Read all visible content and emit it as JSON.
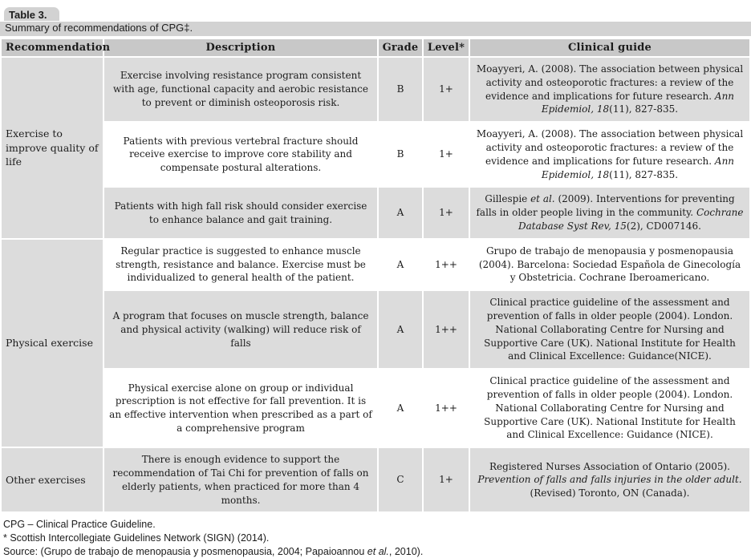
{
  "title": {
    "label": "Table 3.",
    "caption": "Summary of recommendations of CPG‡."
  },
  "table": {
    "headers": [
      "Recommendation",
      "Description",
      "Grade",
      "Level*",
      "Clinical guide"
    ],
    "groups": [
      {
        "recommendation": "Exercise to improve quality of life",
        "rows": [
          {
            "description": "Exercise involving resistance program consistent with age, functional capacity and aerobic resistance to prevent or diminish osteoporosis risk.",
            "grade": "B",
            "level": "1+",
            "guide": [
              {
                "t": "Moayyeri, A. (2008). The association between physical activity and osteoporotic fractures: a review of the evidence and implications for future research. "
              },
              {
                "t": "Ann Epidemiol, 18",
                "i": true
              },
              {
                "t": "(11), 827-835."
              }
            ]
          },
          {
            "description": "Patients with previous vertebral fracture should receive exercise to improve core stability and compensate postural alterations.",
            "grade": "B",
            "level": "1+",
            "guide": [
              {
                "t": "Moayyeri, A. (2008). The association between physical activity and osteoporotic fractures: a review of the evidence and implications for future research. "
              },
              {
                "t": "Ann Epidemiol, 18",
                "i": true
              },
              {
                "t": "(11), 827-835."
              }
            ]
          },
          {
            "description": "Patients with high fall risk should consider exercise to enhance balance and gait training.",
            "grade": "A",
            "level": "1+",
            "guide": [
              {
                "t": "Gillespie "
              },
              {
                "t": "et al.",
                "i": true
              },
              {
                "t": " (2009). Interventions for preventing falls in older people living in the community. "
              },
              {
                "t": "Cochrane Database Syst Rev, 15",
                "i": true
              },
              {
                "t": "(2), CD007146."
              }
            ]
          }
        ]
      },
      {
        "recommendation": "Physical exercise",
        "rows": [
          {
            "description": "Regular practice is suggested to enhance muscle strength, resistance and balance. Exercise must be individualized to general health of the patient.",
            "grade": "A",
            "level": "1++",
            "guide": [
              {
                "t": "Grupo de trabajo de menopausia y posmenopausia (2004). Barcelona: Sociedad Española de Ginecología y Obstetricia. Cochrane Iberoamericano."
              }
            ]
          },
          {
            "description": "A program that focuses on muscle strength, balance and physical activity (walking) will reduce risk of falls",
            "grade": "A",
            "level": "1++",
            "guide": [
              {
                "t": "Clinical practice guideline of the assessment and prevention of falls in older people (2004). London. National Collaborating Centre for Nursing and Supportive Care (UK). National Institute for Health and Clinical Excellence: Guidance(NICE)."
              }
            ]
          },
          {
            "description": "Physical exercise alone on group or individual prescription is not effective for fall prevention. It is an effective intervention when prescribed as a part of a comprehensive program",
            "grade": "A",
            "level": "1++",
            "guide": [
              {
                "t": "Clinical practice guideline of the assessment and prevention of falls in older people (2004). London. National Collaborating Centre for Nursing and Supportive Care (UK). National Institute for Health and Clinical Excellence: Guidance (NICE)."
              }
            ]
          }
        ]
      },
      {
        "recommendation": "Other exercises",
        "rows": [
          {
            "description": "There is enough evidence to support the recommendation of Tai Chi for prevention of falls on elderly patients, when practiced for more than 4 months.",
            "grade": "C",
            "level": "1+",
            "guide": [
              {
                "t": "Registered Nurses Association of Ontario (2005). "
              },
              {
                "t": "Prevention of falls and falls injuries in the older adult.",
                "i": true
              },
              {
                "t": " (Revised) Toronto, ON (Canada)."
              }
            ]
          }
        ]
      }
    ]
  },
  "footnotes": {
    "line1": "CPG – Clinical Practice Guideline.",
    "line2": "* Scottish Intercollegiate Guidelines Network (SIGN) (2014).",
    "line3": [
      {
        "t": "Source: (Grupo de trabajo de menopausia y posmenopausia, 2004; Papaioannou "
      },
      {
        "t": "et al.",
        "i": true
      },
      {
        "t": ", 2010)."
      }
    ]
  },
  "colors": {
    "header_bg": "#c8c8c8",
    "row_shade_bg": "#dcdcdc",
    "caption_bg": "#d2d2d2",
    "text": "#1c1c1c"
  }
}
